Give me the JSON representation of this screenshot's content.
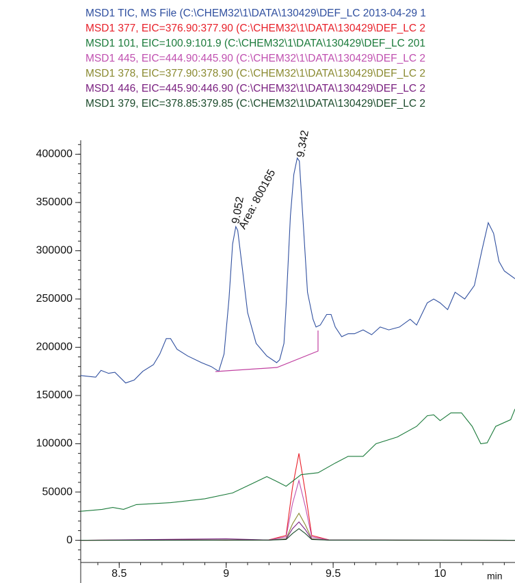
{
  "chart_data": {
    "type": "line",
    "legend": [
      "MSD1 TIC, MS File (C:\\CHEM32\\1\\DATA\\130429\\DEF_LC 2013-04-29 1",
      "MSD1 377, EIC=376.90:377.90 (C:\\CHEM32\\1\\DATA\\130429\\DEF_LC 2",
      "MSD1 101, EIC=100.9:101.9 (C:\\CHEM32\\1\\DATA\\130429\\DEF_LC 201",
      "MSD1 445, EIC=444.90:445.90 (C:\\CHEM32\\1\\DATA\\130429\\DEF_LC 2",
      "MSD1 378, EIC=377.90:378.90 (C:\\CHEM32\\1\\DATA\\130429\\DEF_LC 2",
      "MSD1 446, EIC=445.90:446.90 (C:\\CHEM32\\1\\DATA\\130429\\DEF_LC 2",
      "MSD1 379, EIC=378.85:379.85 (C:\\CHEM32\\1\\DATA\\130429\\DEF_LC 2"
    ],
    "x_label": "min",
    "annotations": [
      "9.052",
      "Area: 800165",
      "9.342"
    ],
    "xlim": [
      8.32,
      10.35
    ],
    "xticks": [
      8.5,
      9,
      9.5,
      10
    ],
    "ylim": [
      -23000,
      418000
    ],
    "yticks": [
      0,
      50000,
      100000,
      150000,
      200000,
      250000,
      300000,
      350000,
      400000
    ],
    "series": [
      {
        "color": "#2f4f9f",
        "x": [
          8.32,
          8.39,
          8.415,
          8.45,
          8.48,
          8.53,
          8.57,
          8.61,
          8.66,
          8.69,
          8.72,
          8.74,
          8.77,
          8.82,
          8.885,
          8.93,
          8.965,
          8.99,
          9.013,
          9.03,
          9.045,
          9.054,
          9.077,
          9.1,
          9.14,
          9.19,
          9.236,
          9.25,
          9.27,
          9.28,
          9.3,
          9.316,
          9.332,
          9.342,
          9.358,
          9.38,
          9.406,
          9.42,
          9.44,
          9.47,
          9.49,
          9.51,
          9.54,
          9.57,
          9.6,
          9.64,
          9.68,
          9.72,
          9.76,
          9.81,
          9.86,
          9.89,
          9.94,
          9.97,
          10.0,
          10.035,
          10.07,
          10.115,
          10.16,
          10.195,
          10.225,
          10.25,
          10.275,
          10.3,
          10.35
        ],
        "values": [
          170700,
          169000,
          176000,
          173000,
          174000,
          163000,
          166000,
          175000,
          182000,
          193000,
          209000,
          209000,
          198000,
          191000,
          184000,
          180000,
          175000,
          193000,
          250000,
          307000,
          325000,
          321000,
          279000,
          236000,
          204000,
          191000,
          184000,
          187000,
          204000,
          243000,
          336000,
          379000,
          396000,
          393000,
          336000,
          257000,
          229000,
          221000,
          223000,
          234000,
          234000,
          221000,
          211000,
          214000,
          214000,
          218000,
          213000,
          221000,
          218000,
          221000,
          229000,
          223000,
          246000,
          250000,
          246000,
          239000,
          257000,
          250000,
          264000,
          300000,
          329000,
          318000,
          289000,
          279000,
          271000
        ]
      },
      {
        "color": "#e8202a",
        "x": [
          8.32,
          8.7,
          9.0,
          9.2,
          9.28,
          9.31,
          9.34,
          9.37,
          9.4,
          9.48,
          9.8,
          10.35
        ],
        "values": [
          0,
          500,
          0,
          500,
          5000,
          55000,
          90000,
          50000,
          5000,
          500,
          0,
          0
        ]
      },
      {
        "color": "#1a7a3a",
        "x": [
          8.32,
          8.42,
          8.47,
          8.52,
          8.58,
          8.74,
          8.9,
          9.03,
          9.125,
          9.19,
          9.236,
          9.28,
          9.35,
          9.43,
          9.51,
          9.57,
          9.64,
          9.7,
          9.8,
          9.89,
          9.94,
          9.97,
          10.0,
          10.05,
          10.1,
          10.15,
          10.19,
          10.22,
          10.26,
          10.33,
          10.35
        ],
        "values": [
          30000,
          32000,
          34000,
          32000,
          37000,
          39000,
          43000,
          49000,
          59000,
          66000,
          61000,
          56000,
          68000,
          70000,
          80000,
          87000,
          87000,
          100000,
          107000,
          118000,
          129000,
          130000,
          124000,
          132000,
          132000,
          118000,
          100000,
          101000,
          118000,
          125000,
          136000
        ]
      },
      {
        "color": "#c050b0",
        "x": [
          8.32,
          9.2,
          9.28,
          9.31,
          9.34,
          9.37,
          9.4,
          9.48,
          10.35
        ],
        "values": [
          0,
          300,
          3500,
          38000,
          62000,
          35000,
          3500,
          300,
          0
        ]
      },
      {
        "color": "#8a8a30",
        "x": [
          8.32,
          9.2,
          9.28,
          9.31,
          9.34,
          9.37,
          9.4,
          9.48,
          10.35
        ],
        "values": [
          0,
          200,
          1600,
          17000,
          28000,
          16000,
          1600,
          200,
          0
        ]
      },
      {
        "color": "#7a2080",
        "x": [
          8.32,
          9.0,
          9.2,
          9.28,
          9.31,
          9.34,
          9.37,
          9.4,
          9.48,
          10.35
        ],
        "values": [
          0,
          1500,
          200,
          1200,
          12000,
          19000,
          11000,
          1200,
          200,
          0
        ]
      },
      {
        "color": "#1a4a2a",
        "x": [
          8.32,
          9.2,
          9.28,
          9.31,
          9.34,
          9.37,
          9.4,
          9.48,
          10.35
        ],
        "values": [
          0,
          150,
          800,
          7000,
          12000,
          7000,
          800,
          150,
          0
        ]
      }
    ]
  }
}
